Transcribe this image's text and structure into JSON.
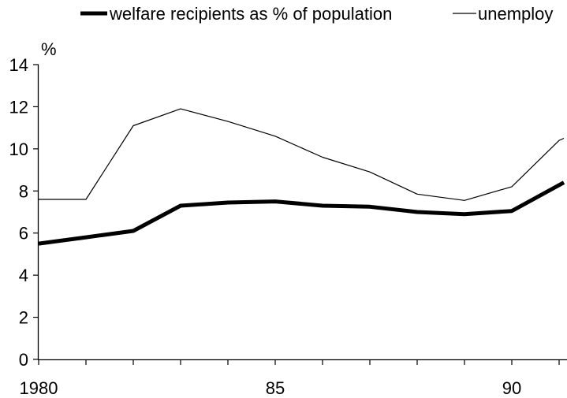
{
  "chart_data": {
    "type": "line",
    "title": "",
    "xlabel": "",
    "ylabel": "%",
    "ylim": [
      0,
      14
    ],
    "xlim": [
      1980,
      1991.1
    ],
    "yticks": [
      0,
      2,
      4,
      6,
      8,
      10,
      12,
      14
    ],
    "xtick_labels": [
      {
        "x": 1980,
        "label": "1980"
      },
      {
        "x": 1985,
        "label": "85"
      },
      {
        "x": 1990,
        "label": "90"
      }
    ],
    "minor_xticks": [
      1981,
      1982,
      1983,
      1984,
      1986,
      1987,
      1988,
      1989,
      1991
    ],
    "grid": false,
    "legend_position": "top",
    "series": [
      {
        "name": "welfare recipients as % of population",
        "color": "#000000",
        "style": "thick",
        "x": [
          1980,
          1981,
          1982,
          1983,
          1984,
          1985,
          1986,
          1987,
          1988,
          1989,
          1990,
          1991.1
        ],
        "values": [
          5.5,
          5.8,
          6.1,
          7.3,
          7.45,
          7.5,
          7.3,
          7.25,
          7.0,
          6.9,
          7.05,
          8.4
        ]
      },
      {
        "name": "unemploy",
        "color": "#000000",
        "style": "thin",
        "x": [
          1980,
          1981,
          1982,
          1983,
          1984,
          1985,
          1986,
          1987,
          1988,
          1989,
          1990,
          1991,
          1991.1
        ],
        "values": [
          7.6,
          7.6,
          11.1,
          11.9,
          11.3,
          10.6,
          9.6,
          8.9,
          7.85,
          7.55,
          8.2,
          10.4,
          10.5
        ]
      }
    ]
  }
}
